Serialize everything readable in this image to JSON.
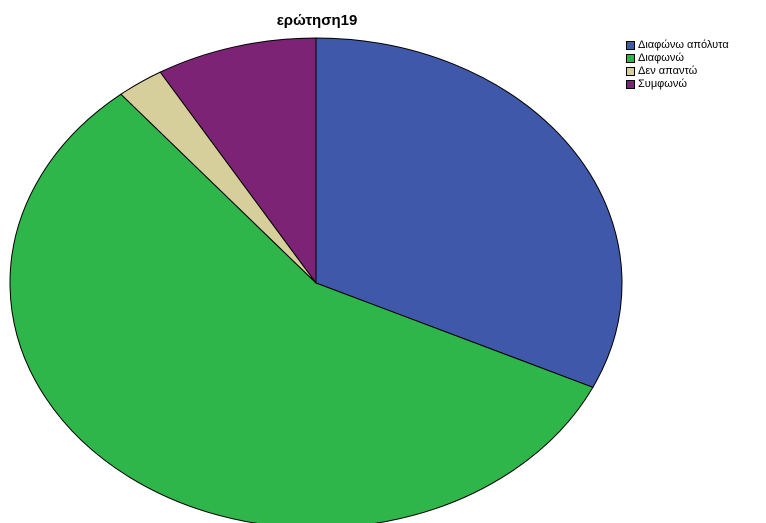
{
  "chart_data": {
    "type": "pie",
    "title": "ερώτηση19",
    "categories": [
      "Διαφώνω απόλυτα",
      "Διαφωνώ",
      "Δεν απαντώ",
      "Συμφωνώ"
    ],
    "values": [
      32,
      57,
      2.5,
      8.5
    ],
    "colors": [
      "#3f58a9",
      "#2fb64b",
      "#d6cf9c",
      "#7d2375"
    ],
    "legend_position": "top-right"
  }
}
